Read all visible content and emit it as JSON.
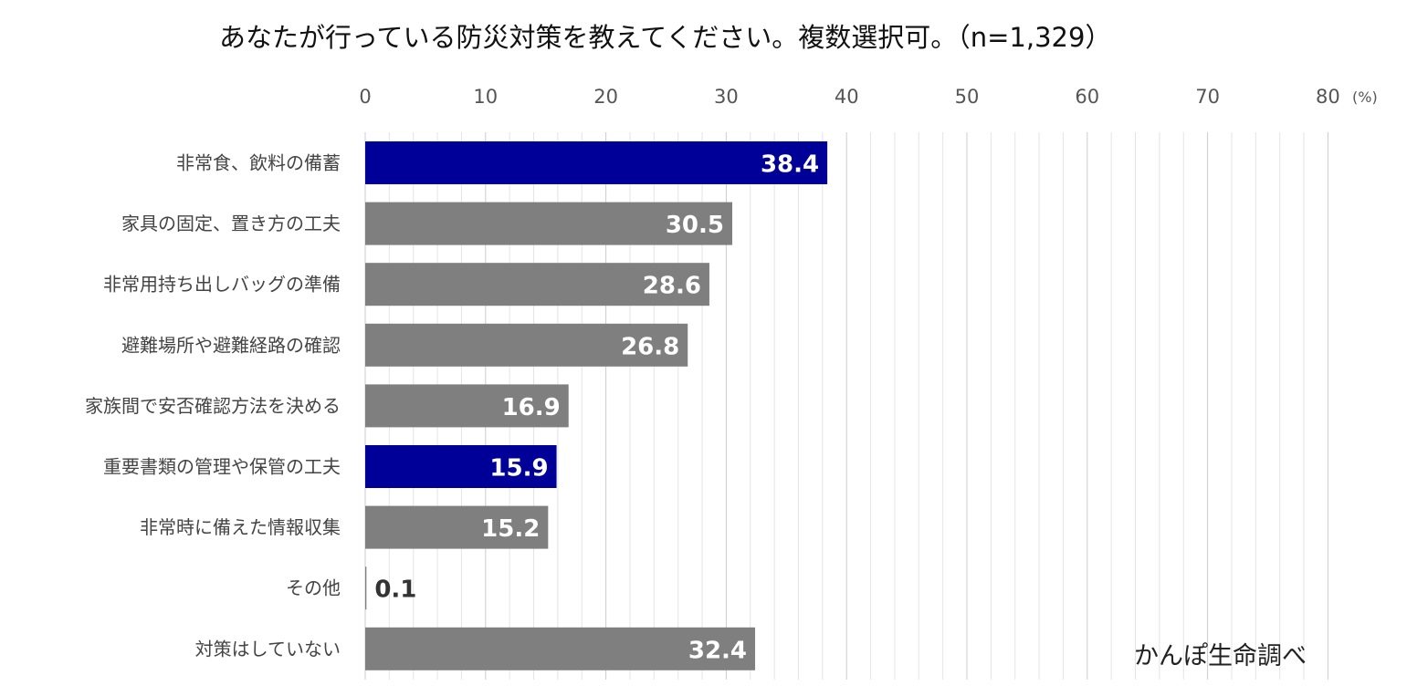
{
  "chart_data": {
    "type": "bar",
    "orientation": "horizontal",
    "title": "あなたが行っている防災対策を教えてください。複数選択可。（n=1,329）",
    "unit": "(%)",
    "xlim": [
      0,
      80
    ],
    "ticks": [
      "0",
      "10",
      "20",
      "30",
      "40",
      "50",
      "60",
      "70",
      "80"
    ],
    "grid": true,
    "categories": [
      "非常食、飲料の備蓄",
      "家具の固定、置き方の工夫",
      "非常用持ち出しバッグの準備",
      "避難場所や避難経路の確認",
      "家族間で安否確認方法を決める",
      "重要書類の管理や保管の工夫",
      "非常時に備えた情報収集",
      "その他",
      "対策はしていない"
    ],
    "values": [
      38.4,
      30.5,
      28.6,
      26.8,
      16.9,
      15.9,
      15.2,
      0.1,
      32.4
    ],
    "value_labels": [
      "38.4",
      "30.5",
      "28.6",
      "26.8",
      "16.9",
      "15.9",
      "15.2",
      "0.1",
      "32.4"
    ],
    "highlight": [
      true,
      false,
      false,
      false,
      false,
      true,
      false,
      false,
      false
    ],
    "colors": {
      "highlight": "#000099",
      "default": "#7f7f7f",
      "grid": "#d9d9d9"
    },
    "source": "かんぽ生命調べ"
  }
}
